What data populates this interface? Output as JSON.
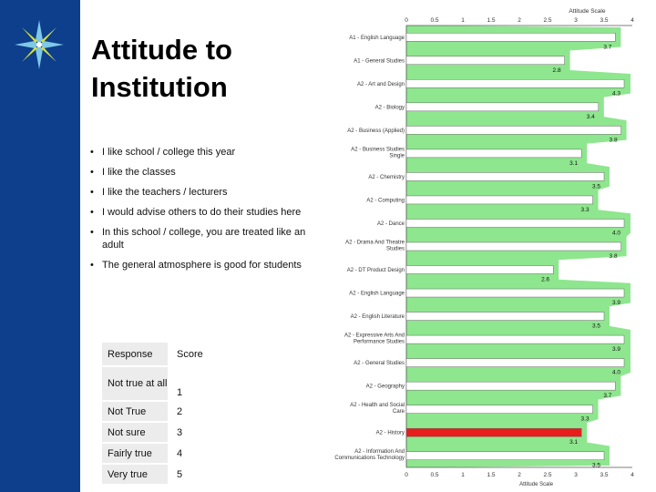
{
  "slide": {
    "title": "Attitude to Institution",
    "bullets": [
      "I like school / college this year",
      "I like the classes",
      "I like the teachers / lecturers",
      "I would advise others to do their studies here",
      "In this school / college, you are treated like an adult",
      "The general atmosphere is good for students"
    ]
  },
  "table": {
    "headers": [
      "Response",
      "Score"
    ],
    "rows": [
      {
        "response": "Not true at all",
        "score": "1"
      },
      {
        "response": "Not True",
        "score": "2"
      },
      {
        "response": "Not sure",
        "score": "3"
      },
      {
        "response": "Fairly true",
        "score": "4"
      },
      {
        "response": "Very true",
        "score": "5"
      }
    ]
  },
  "colors": {
    "sidebar": "#0d3f8c",
    "area": "#8ee68e",
    "highlight": "#e81c1c",
    "bar": "#ffffff"
  },
  "chart_data": {
    "type": "bar",
    "orientation": "horizontal",
    "title": "Attitude Scale",
    "xlabel": "Attitude Scale",
    "xlim": [
      0,
      4
    ],
    "xticks": [
      "0",
      "0.5",
      "1",
      "1.5",
      "2",
      "2.5",
      "3",
      "3.5",
      "4"
    ],
    "categories": [
      "A1 - English Language",
      "A1 - General Studies",
      "A2 - Art and Design",
      "A2 - Biology",
      "A2 - Business (Applied)",
      "A2 - Business Studies Single",
      "A2 - Chemistry",
      "A2 - Computing",
      "A2 - Dance",
      "A2 - Drama And Theatre Studies",
      "A2 - DT Product Design",
      "A2 - English Language",
      "A2 - English Literature",
      "A2 - Expressive Arts And Performance Studies",
      "A2 - General Studies",
      "A2 - Geography",
      "A2 - Health and Social Care",
      "A2 - History",
      "A2 - Information And Communications Technology"
    ],
    "values": [
      3.7,
      2.8,
      4.3,
      3.4,
      3.8,
      3.1,
      3.5,
      3.3,
      4.0,
      3.8,
      2.6,
      3.9,
      3.5,
      3.9,
      4.0,
      3.7,
      3.3,
      3.1,
      3.5
    ],
    "value_labels": [
      "3.7",
      "2.8",
      "4.3",
      "3.4",
      "3.8",
      "3.1",
      "3.5",
      "3.3",
      "4.0",
      "3.8",
      "2.6",
      "3.9",
      "3.5",
      "3.9",
      "4.0",
      "3.7",
      "3.3",
      "3.1",
      "3.5"
    ],
    "highlight_category": "A2 - History"
  }
}
